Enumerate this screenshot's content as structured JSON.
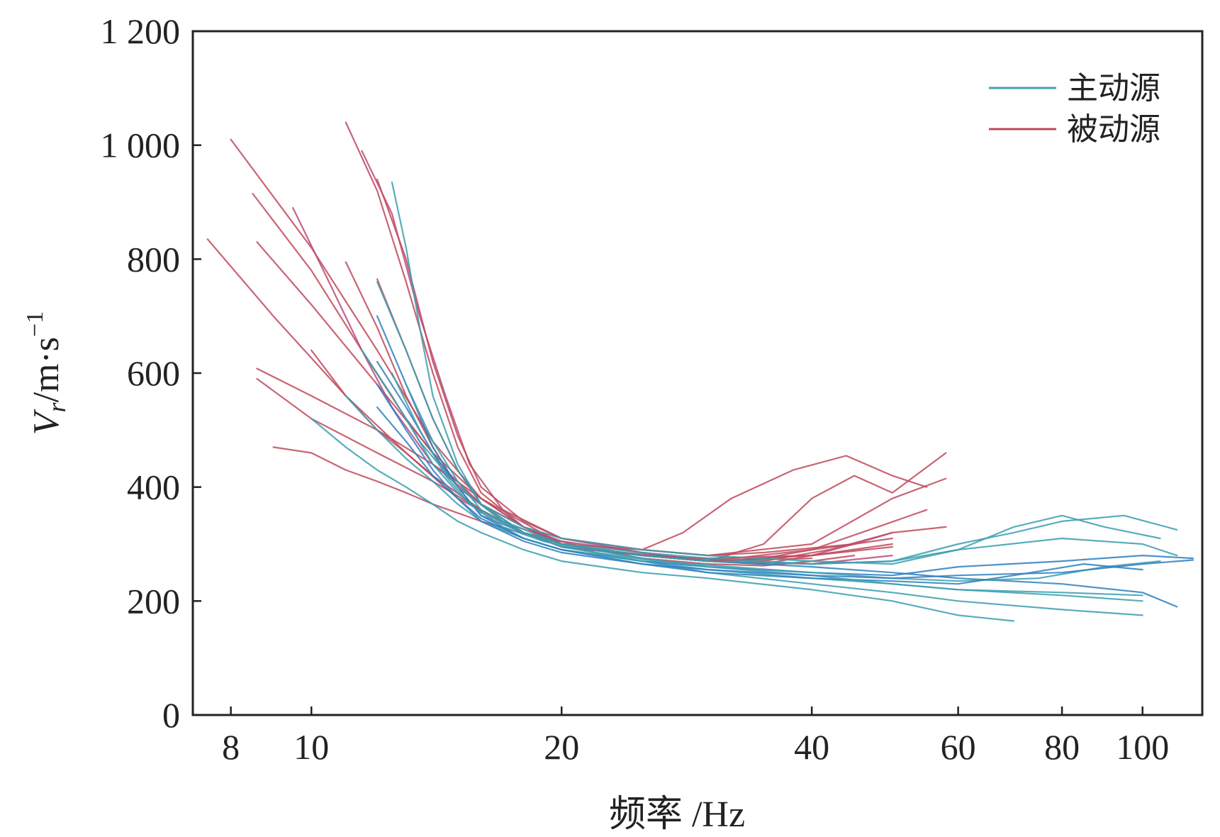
{
  "chart_data": {
    "type": "line",
    "title": "",
    "xlabel": "频率 /Hz",
    "ylabel_main": "V",
    "ylabel_sub": "r",
    "ylabel_unit": "/m·s",
    "ylabel_sup": "−1",
    "xscale": "log",
    "xlim": [
      7.2,
      118
    ],
    "ylim": [
      0,
      1200
    ],
    "x_ticks": [
      8,
      10,
      20,
      40,
      60,
      80,
      100
    ],
    "x_tick_labels": [
      "8",
      "10",
      "20",
      "40",
      "60",
      "80",
      "100"
    ],
    "y_ticks": [
      0,
      200,
      400,
      600,
      800,
      1000,
      1200
    ],
    "y_tick_labels": [
      "0",
      "200",
      "400",
      "600",
      "800",
      "1 000",
      "1 200"
    ],
    "legend_position": "top-right",
    "colors": {
      "active": "#3a9fb0",
      "passive": "#c0495a",
      "active_alt": "#2f7fbf",
      "passive_alt": "#b84a7a",
      "axis": "#222222"
    },
    "legend": [
      {
        "name": "主动源",
        "color": "#4aa0aa"
      },
      {
        "name": "被动源",
        "color": "#c0495a"
      }
    ],
    "series": [
      {
        "name": "被动源",
        "color": "#c0495a",
        "x": [
          8,
          10,
          12,
          14,
          16,
          20,
          25,
          30,
          35,
          40,
          45
        ],
        "y": [
          1010,
          820,
          640,
          480,
          380,
          300,
          275,
          265,
          262,
          270,
          280
        ]
      },
      {
        "name": "被动源",
        "color": "#c0495a",
        "x": [
          7.5,
          9,
          11,
          13,
          15,
          18,
          22,
          28,
          35,
          42,
          50,
          58
        ],
        "y": [
          835,
          700,
          560,
          460,
          380,
          320,
          290,
          275,
          270,
          290,
          320,
          330
        ]
      },
      {
        "name": "被动源",
        "color": "#c0495a",
        "x": [
          11,
          12,
          13,
          14,
          15,
          16,
          18,
          20,
          25,
          30,
          35,
          40,
          45,
          50
        ],
        "y": [
          1040,
          920,
          760,
          600,
          470,
          390,
          330,
          300,
          280,
          270,
          275,
          290,
          300,
          310
        ]
      },
      {
        "name": "被动源",
        "color": "#b84a7a",
        "x": [
          11.5,
          12.5,
          13.5,
          14.5,
          15.5,
          17,
          20,
          25,
          30,
          35,
          40,
          45,
          50
        ],
        "y": [
          990,
          880,
          700,
          560,
          440,
          360,
          310,
          285,
          270,
          265,
          280,
          300,
          320
        ]
      },
      {
        "name": "被动源",
        "color": "#c0495a",
        "x": [
          12,
          13,
          14,
          15,
          16,
          18,
          20,
          25,
          30,
          40,
          50,
          58
        ],
        "y": [
          940,
          800,
          620,
          490,
          400,
          340,
          310,
          290,
          280,
          300,
          380,
          415
        ]
      },
      {
        "name": "被动源",
        "color": "#c0495a",
        "x": [
          8.5,
          10,
          11.5,
          13,
          14.5,
          16,
          18,
          20,
          25,
          30,
          35,
          45
        ],
        "y": [
          915,
          780,
          640,
          520,
          430,
          370,
          330,
          310,
          290,
          280,
          285,
          300
        ]
      },
      {
        "name": "被动源",
        "color": "#c0495a",
        "x": [
          8.6,
          10,
          12,
          14,
          16,
          18,
          20,
          25,
          30,
          35,
          40,
          45,
          50,
          58
        ],
        "y": [
          830,
          720,
          580,
          460,
          380,
          330,
          300,
          280,
          270,
          300,
          380,
          420,
          390,
          460
        ]
      },
      {
        "name": "被动源",
        "color": "#c0495a",
        "x": [
          8.6,
          10,
          12,
          14,
          16,
          18,
          20,
          25,
          28,
          32,
          38,
          44,
          50,
          55
        ],
        "y": [
          608,
          560,
          500,
          440,
          380,
          330,
          300,
          290,
          320,
          380,
          430,
          455,
          420,
          400
        ]
      },
      {
        "name": "被动源",
        "color": "#c0495a",
        "x": [
          8.6,
          10,
          12,
          14,
          16,
          18,
          20,
          25,
          30,
          40,
          48,
          55
        ],
        "y": [
          590,
          520,
          460,
          410,
          360,
          320,
          295,
          280,
          270,
          290,
          330,
          360
        ]
      },
      {
        "name": "被动源",
        "color": "#b84a7a",
        "x": [
          9.5,
          10.5,
          11.5,
          12.5,
          14,
          16,
          18,
          20,
          25,
          30,
          40,
          50
        ],
        "y": [
          890,
          760,
          640,
          540,
          440,
          370,
          330,
          305,
          285,
          270,
          265,
          280
        ]
      },
      {
        "name": "被动源",
        "color": "#c0495a",
        "x": [
          10,
          11,
          12,
          13,
          14,
          16,
          18,
          20,
          25,
          30,
          40
        ],
        "y": [
          640,
          560,
          500,
          460,
          420,
          360,
          320,
          300,
          280,
          270,
          275
        ]
      },
      {
        "name": "被动源",
        "color": "#c0495a",
        "x": [
          11,
          12,
          13,
          14,
          15,
          17,
          20,
          25,
          30,
          40
        ],
        "y": [
          795,
          680,
          560,
          470,
          400,
          340,
          300,
          280,
          270,
          265
        ]
      },
      {
        "name": "被动源",
        "color": "#c0495a",
        "x": [
          12,
          13,
          14,
          15,
          16,
          18,
          20,
          25,
          30,
          40,
          50
        ],
        "y": [
          765,
          640,
          520,
          430,
          370,
          320,
          295,
          280,
          275,
          280,
          300
        ]
      },
      {
        "name": "被动源",
        "color": "#c0495a",
        "x": [
          9,
          10,
          11,
          12,
          13,
          14,
          16,
          20,
          25,
          30,
          40,
          50
        ],
        "y": [
          470,
          460,
          430,
          410,
          390,
          370,
          340,
          300,
          280,
          270,
          280,
          295
        ]
      },
      {
        "name": "主动源",
        "color": "#3a9fb0",
        "x": [
          12.5,
          13,
          13.5,
          14,
          15,
          16,
          18,
          20,
          25,
          30,
          40,
          50,
          60,
          80,
          100
        ],
        "y": [
          935,
          820,
          680,
          560,
          440,
          370,
          320,
          295,
          270,
          255,
          240,
          230,
          220,
          210,
          200
        ]
      },
      {
        "name": "主动源",
        "color": "#3a9fb0",
        "x": [
          12,
          13,
          14,
          15,
          16,
          18,
          20,
          25,
          30,
          40,
          50,
          60,
          70,
          80,
          90,
          105
        ],
        "y": [
          760,
          640,
          520,
          430,
          370,
          330,
          310,
          290,
          280,
          270,
          265,
          290,
          330,
          350,
          330,
          310
        ]
      },
      {
        "name": "主动源",
        "color": "#2f7fbf",
        "x": [
          12,
          13,
          14,
          15,
          16,
          18,
          20,
          25,
          30,
          40,
          50,
          60,
          80,
          100,
          115
        ],
        "y": [
          620,
          540,
          460,
          400,
          350,
          310,
          290,
          270,
          260,
          250,
          245,
          260,
          270,
          280,
          275
        ]
      },
      {
        "name": "主动源",
        "color": "#3a9fb0",
        "x": [
          11,
          12,
          13,
          14,
          15,
          16,
          18,
          20,
          25,
          30,
          40,
          50,
          60,
          80,
          100
        ],
        "y": [
          560,
          500,
          450,
          410,
          370,
          340,
          310,
          290,
          270,
          250,
          230,
          215,
          200,
          185,
          175
        ]
      },
      {
        "name": "主动源",
        "color": "#3a9fb0",
        "x": [
          10,
          11,
          12,
          13,
          14,
          15,
          16,
          18,
          20,
          25,
          30,
          40,
          50,
          60,
          70
        ],
        "y": [
          520,
          470,
          430,
          400,
          370,
          340,
          320,
          290,
          270,
          250,
          240,
          220,
          200,
          175,
          165
        ]
      },
      {
        "name": "主动源",
        "color": "#2f7fbf",
        "x": [
          12,
          13,
          14,
          15,
          16,
          18,
          20,
          25,
          30,
          40,
          50,
          60,
          80,
          100,
          110
        ],
        "y": [
          700,
          580,
          470,
          400,
          350,
          320,
          300,
          280,
          270,
          260,
          250,
          240,
          230,
          215,
          190
        ]
      },
      {
        "name": "主动源",
        "color": "#3a9fb0",
        "x": [
          13,
          14,
          15,
          16,
          18,
          20,
          25,
          30,
          40,
          50,
          60,
          80,
          100,
          110
        ],
        "y": [
          580,
          480,
          410,
          360,
          320,
          300,
          280,
          270,
          265,
          270,
          290,
          310,
          300,
          280
        ]
      },
      {
        "name": "主动源",
        "color": "#3a9fb0",
        "x": [
          12.5,
          13.5,
          14.5,
          15.5,
          17,
          19,
          22,
          26,
          32,
          40,
          50,
          60,
          75,
          90,
          105
        ],
        "y": [
          600,
          500,
          420,
          370,
          330,
          305,
          285,
          270,
          260,
          250,
          240,
          235,
          240,
          260,
          270
        ]
      },
      {
        "name": "主动源",
        "color": "#2f7fbf",
        "x": [
          12,
          13,
          14,
          15,
          16,
          18,
          20,
          25,
          30,
          40,
          50,
          60,
          70,
          85,
          100
        ],
        "y": [
          540,
          480,
          420,
          380,
          345,
          310,
          290,
          265,
          250,
          240,
          235,
          230,
          245,
          265,
          255
        ]
      },
      {
        "name": "主动源",
        "color": "#3a9fb0",
        "x": [
          11.5,
          12.5,
          13.5,
          15,
          17,
          20,
          25,
          30,
          40,
          50,
          60,
          80,
          100
        ],
        "y": [
          640,
          560,
          480,
          400,
          340,
          300,
          275,
          260,
          245,
          230,
          220,
          215,
          210
        ]
      },
      {
        "name": "主动源",
        "color": "#3a9fb0",
        "x": [
          13,
          14,
          15,
          16,
          18,
          20,
          25,
          30,
          40,
          50,
          60,
          70,
          80,
          95,
          110
        ],
        "y": [
          520,
          440,
          390,
          355,
          320,
          300,
          285,
          275,
          265,
          270,
          300,
          320,
          340,
          350,
          325
        ]
      },
      {
        "name": "主动源",
        "color": "#2f7fbf",
        "x": [
          12,
          13,
          14,
          15,
          16,
          18,
          20,
          25,
          30,
          40,
          50,
          60,
          80,
          100,
          115
        ],
        "y": [
          580,
          500,
          430,
          380,
          340,
          305,
          285,
          265,
          255,
          245,
          240,
          245,
          250,
          265,
          272
        ]
      }
    ]
  }
}
